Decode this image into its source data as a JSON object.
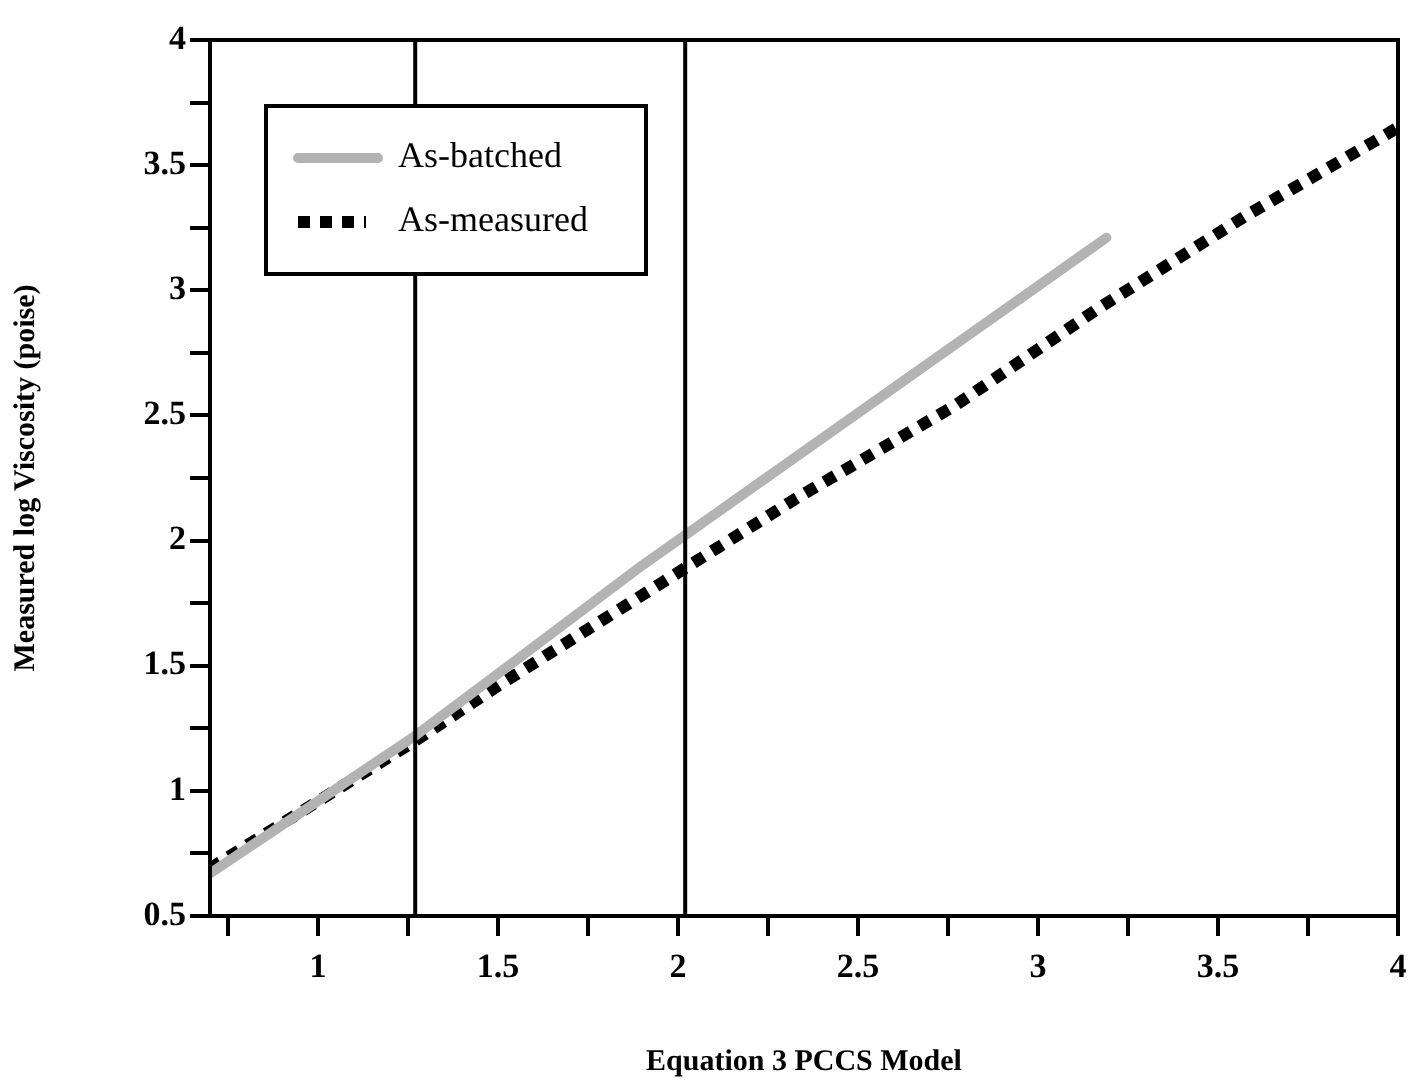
{
  "chart_data": {
    "type": "line",
    "xlabel": "Equation 3 PCCS Model",
    "ylabel": "Measured log Viscosity (poise)",
    "xlim": [
      0.7,
      4
    ],
    "ylim": [
      0.5,
      4
    ],
    "xticks": [
      {
        "value": 0.75,
        "label": null
      },
      1,
      {
        "value": 1.25,
        "label": null
      },
      1.5,
      {
        "value": 1.75,
        "label": null
      },
      2,
      {
        "value": 2.25,
        "label": null
      },
      2.5,
      {
        "value": 2.75,
        "label": null
      },
      3,
      {
        "value": 3.25,
        "label": null
      },
      3.5,
      {
        "value": 3.75,
        "label": null
      },
      4
    ],
    "yticks": [
      0.5,
      {
        "value": 0.75,
        "label": null
      },
      1,
      {
        "value": 1.25,
        "label": null
      },
      1.5,
      {
        "value": 1.75,
        "label": null
      },
      2,
      {
        "value": 2.25,
        "label": null
      },
      2.5,
      {
        "value": 2.75,
        "label": null
      },
      3,
      {
        "value": 3.25,
        "label": null
      },
      3.5,
      {
        "value": 3.75,
        "label": null
      },
      4
    ],
    "grid": false,
    "legend": "top left",
    "marker": "none",
    "ref_lines": [
      {
        "axis": "x",
        "value": 1.27,
        "color": "#000000"
      },
      {
        "axis": "x",
        "value": 2.02,
        "color": "#000000"
      }
    ],
    "series": [
      {
        "name": "As-batched",
        "color": "#b3b3b3",
        "line_style": "solid",
        "x": [
          0.7,
          1.27,
          1.9,
          2.54,
          3.19
        ],
        "values": [
          0.67,
          1.22,
          1.9,
          2.55,
          3.21
        ]
      },
      {
        "name": "As-measured",
        "color": "#000000",
        "line_style": "dotted",
        "x": [
          0.7,
          1.27,
          1.5,
          2.02,
          2.33,
          2.77,
          3.17,
          3.58,
          4
        ],
        "values": [
          0.69,
          1.2,
          1.42,
          1.89,
          2.17,
          2.54,
          2.93,
          3.3,
          3.65
        ]
      }
    ]
  }
}
